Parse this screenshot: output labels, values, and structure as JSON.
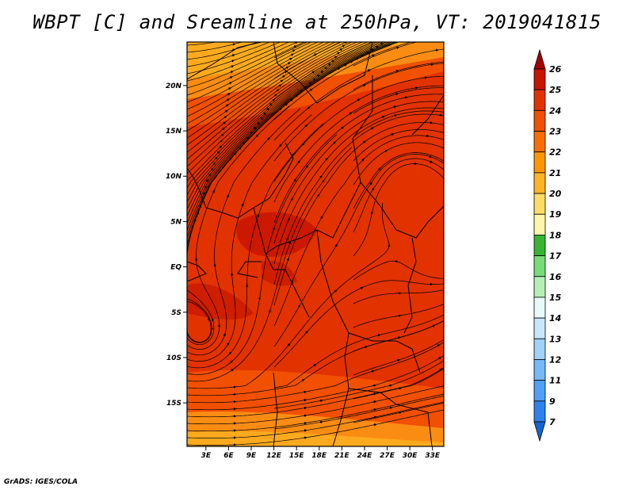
{
  "title": "WBPT [C] and Sreamline at 250hPa, VT: 2019041815",
  "footer": "GrADS: IGES/COLA",
  "map": {
    "lat_labels": [
      {
        "label": "20N",
        "lat": 20
      },
      {
        "label": "15N",
        "lat": 15
      },
      {
        "label": "10N",
        "lat": 10
      },
      {
        "label": "5N",
        "lat": 5
      },
      {
        "label": "EQ",
        "lat": 0
      },
      {
        "label": "5S",
        "lat": -5
      },
      {
        "label": "10S",
        "lat": -10
      },
      {
        "label": "15S",
        "lat": -15
      }
    ],
    "lon_labels": [
      {
        "label": "3E",
        "lon": 3
      },
      {
        "label": "6E",
        "lon": 6
      },
      {
        "label": "9E",
        "lon": 9
      },
      {
        "label": "12E",
        "lon": 12
      },
      {
        "label": "15E",
        "lon": 15
      },
      {
        "label": "18E",
        "lon": 18
      },
      {
        "label": "21E",
        "lon": 21
      },
      {
        "label": "24E",
        "lon": 24
      },
      {
        "label": "27E",
        "lon": 27
      },
      {
        "label": "30E",
        "lon": 30
      },
      {
        "label": "33E",
        "lon": 33
      }
    ],
    "lon_range": [
      0.5,
      34.5
    ],
    "lat_range": [
      -19.8,
      24.8
    ]
  },
  "colorbar": {
    "levels": [
      "26",
      "25",
      "24",
      "23",
      "22",
      "21",
      "20",
      "19",
      "18",
      "17",
      "16",
      "15",
      "14",
      "13",
      "12",
      "11",
      "9",
      "7"
    ],
    "colors": [
      "#a50000",
      "#c81400",
      "#e13200",
      "#f05000",
      "#fa6e00",
      "#ff9600",
      "#ffb428",
      "#ffdc64",
      "#fff5aa",
      "#37b432",
      "#78dc78",
      "#b4f0b4",
      "#e6fafa",
      "#c8e6fa",
      "#a0d2fa",
      "#78b9fa",
      "#50a0f5",
      "#2d82f0",
      "#1464d2"
    ]
  },
  "legend_colors": {
    "deep_red": "#c81400",
    "red_orange": "#e13200",
    "orange": "#f05000",
    "light_orange": "#fa8c14",
    "yellow_orange": "#ffaa1e"
  }
}
